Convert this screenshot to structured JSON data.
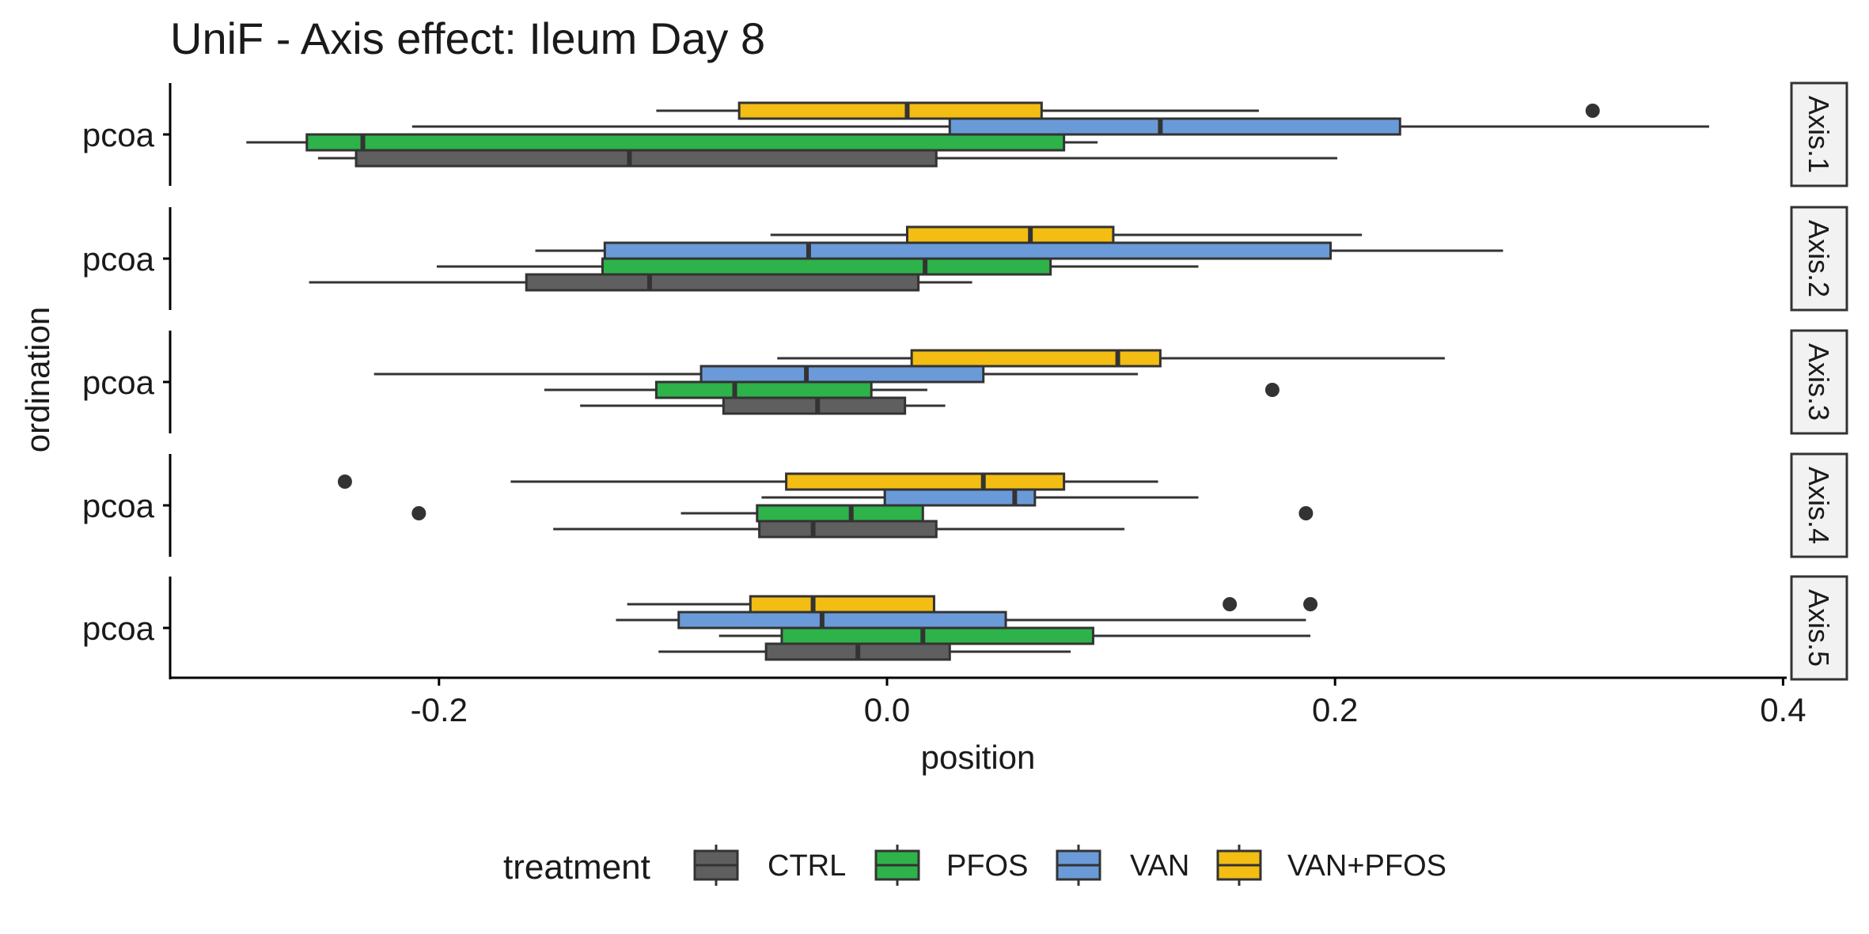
{
  "chart_data": {
    "type": "boxplot",
    "title": "UniF - Axis effect: Ileum Day 8",
    "xlabel": "position",
    "ylabel": "ordination",
    "xlim": [
      -0.32,
      0.4
    ],
    "x_ticks": [
      -0.2,
      0.0,
      0.2,
      0.4
    ],
    "x_tick_labels": [
      "-0.2",
      "0.0",
      "0.2",
      "0.4"
    ],
    "y_category": "pcoa",
    "grid": false,
    "legend": {
      "title": "treatment",
      "position": "bottom",
      "entries": [
        {
          "name": "CTRL",
          "color": "#5f5f5f"
        },
        {
          "name": "PFOS",
          "color": "#2eb24a"
        },
        {
          "name": "VAN",
          "color": "#6a9bd8"
        },
        {
          "name": "VAN+PFOS",
          "color": "#f3bd13"
        }
      ]
    },
    "facets": [
      {
        "strip": "Axis.1",
        "y_label": "pcoa",
        "boxes": [
          {
            "treatment": "VAN+PFOS",
            "whisker_low": -0.103,
            "q1": -0.066,
            "median": 0.009,
            "q3": 0.069,
            "whisker_high": 0.166,
            "outliers": [
              0.315
            ]
          },
          {
            "treatment": "VAN",
            "whisker_low": -0.212,
            "q1": 0.028,
            "median": 0.122,
            "q3": 0.229,
            "whisker_high": 0.367,
            "outliers": []
          },
          {
            "treatment": "PFOS",
            "whisker_low": -0.286,
            "q1": -0.259,
            "median": -0.234,
            "q3": 0.079,
            "whisker_high": 0.094,
            "outliers": []
          },
          {
            "treatment": "CTRL",
            "whisker_low": -0.254,
            "q1": -0.237,
            "median": -0.115,
            "q3": 0.022,
            "whisker_high": 0.201,
            "outliers": []
          }
        ]
      },
      {
        "strip": "Axis.2",
        "y_label": "pcoa",
        "boxes": [
          {
            "treatment": "VAN+PFOS",
            "whisker_low": -0.052,
            "q1": 0.009,
            "median": 0.064,
            "q3": 0.101,
            "whisker_high": 0.212,
            "outliers": []
          },
          {
            "treatment": "VAN",
            "whisker_low": -0.157,
            "q1": -0.126,
            "median": -0.035,
            "q3": 0.198,
            "whisker_high": 0.275,
            "outliers": []
          },
          {
            "treatment": "PFOS",
            "whisker_low": -0.201,
            "q1": -0.127,
            "median": 0.017,
            "q3": 0.073,
            "whisker_high": 0.139,
            "outliers": []
          },
          {
            "treatment": "CTRL",
            "whisker_low": -0.258,
            "q1": -0.161,
            "median": -0.106,
            "q3": 0.014,
            "whisker_high": 0.038,
            "outliers": []
          }
        ]
      },
      {
        "strip": "Axis.3",
        "y_label": "pcoa",
        "boxes": [
          {
            "treatment": "VAN+PFOS",
            "whisker_low": -0.049,
            "q1": 0.011,
            "median": 0.103,
            "q3": 0.122,
            "whisker_high": 0.249,
            "outliers": []
          },
          {
            "treatment": "VAN",
            "whisker_low": -0.229,
            "q1": -0.083,
            "median": -0.036,
            "q3": 0.043,
            "whisker_high": 0.112,
            "outliers": []
          },
          {
            "treatment": "PFOS",
            "whisker_low": -0.153,
            "q1": -0.103,
            "median": -0.068,
            "q3": -0.007,
            "whisker_high": 0.018,
            "outliers": [
              0.172
            ]
          },
          {
            "treatment": "CTRL",
            "whisker_low": -0.137,
            "q1": -0.073,
            "median": -0.031,
            "q3": 0.008,
            "whisker_high": 0.026,
            "outliers": []
          }
        ]
      },
      {
        "strip": "Axis.4",
        "y_label": "pcoa",
        "boxes": [
          {
            "treatment": "VAN+PFOS",
            "whisker_low": -0.168,
            "q1": -0.045,
            "median": 0.043,
            "q3": 0.079,
            "whisker_high": 0.121,
            "outliers": [
              -0.242
            ]
          },
          {
            "treatment": "VAN",
            "whisker_low": -0.056,
            "q1": -0.001,
            "median": 0.057,
            "q3": 0.066,
            "whisker_high": 0.139,
            "outliers": []
          },
          {
            "treatment": "PFOS",
            "whisker_low": -0.092,
            "q1": -0.058,
            "median": -0.016,
            "q3": 0.016,
            "whisker_high": 0.016,
            "outliers": [
              -0.209,
              0.187
            ]
          },
          {
            "treatment": "CTRL",
            "whisker_low": -0.149,
            "q1": -0.057,
            "median": -0.033,
            "q3": 0.022,
            "whisker_high": 0.106,
            "outliers": []
          }
        ]
      },
      {
        "strip": "Axis.5",
        "y_label": "pcoa",
        "boxes": [
          {
            "treatment": "VAN+PFOS",
            "whisker_low": -0.116,
            "q1": -0.061,
            "median": -0.033,
            "q3": 0.021,
            "whisker_high": 0.021,
            "outliers": [
              0.153,
              0.189
            ]
          },
          {
            "treatment": "VAN",
            "whisker_low": -0.121,
            "q1": -0.093,
            "median": -0.029,
            "q3": 0.053,
            "whisker_high": 0.187,
            "outliers": []
          },
          {
            "treatment": "PFOS",
            "whisker_low": -0.075,
            "q1": -0.047,
            "median": 0.016,
            "q3": 0.092,
            "whisker_high": 0.189,
            "outliers": []
          },
          {
            "treatment": "CTRL",
            "whisker_low": -0.102,
            "q1": -0.054,
            "median": -0.013,
            "q3": 0.028,
            "whisker_high": 0.082,
            "outliers": []
          }
        ]
      }
    ]
  }
}
